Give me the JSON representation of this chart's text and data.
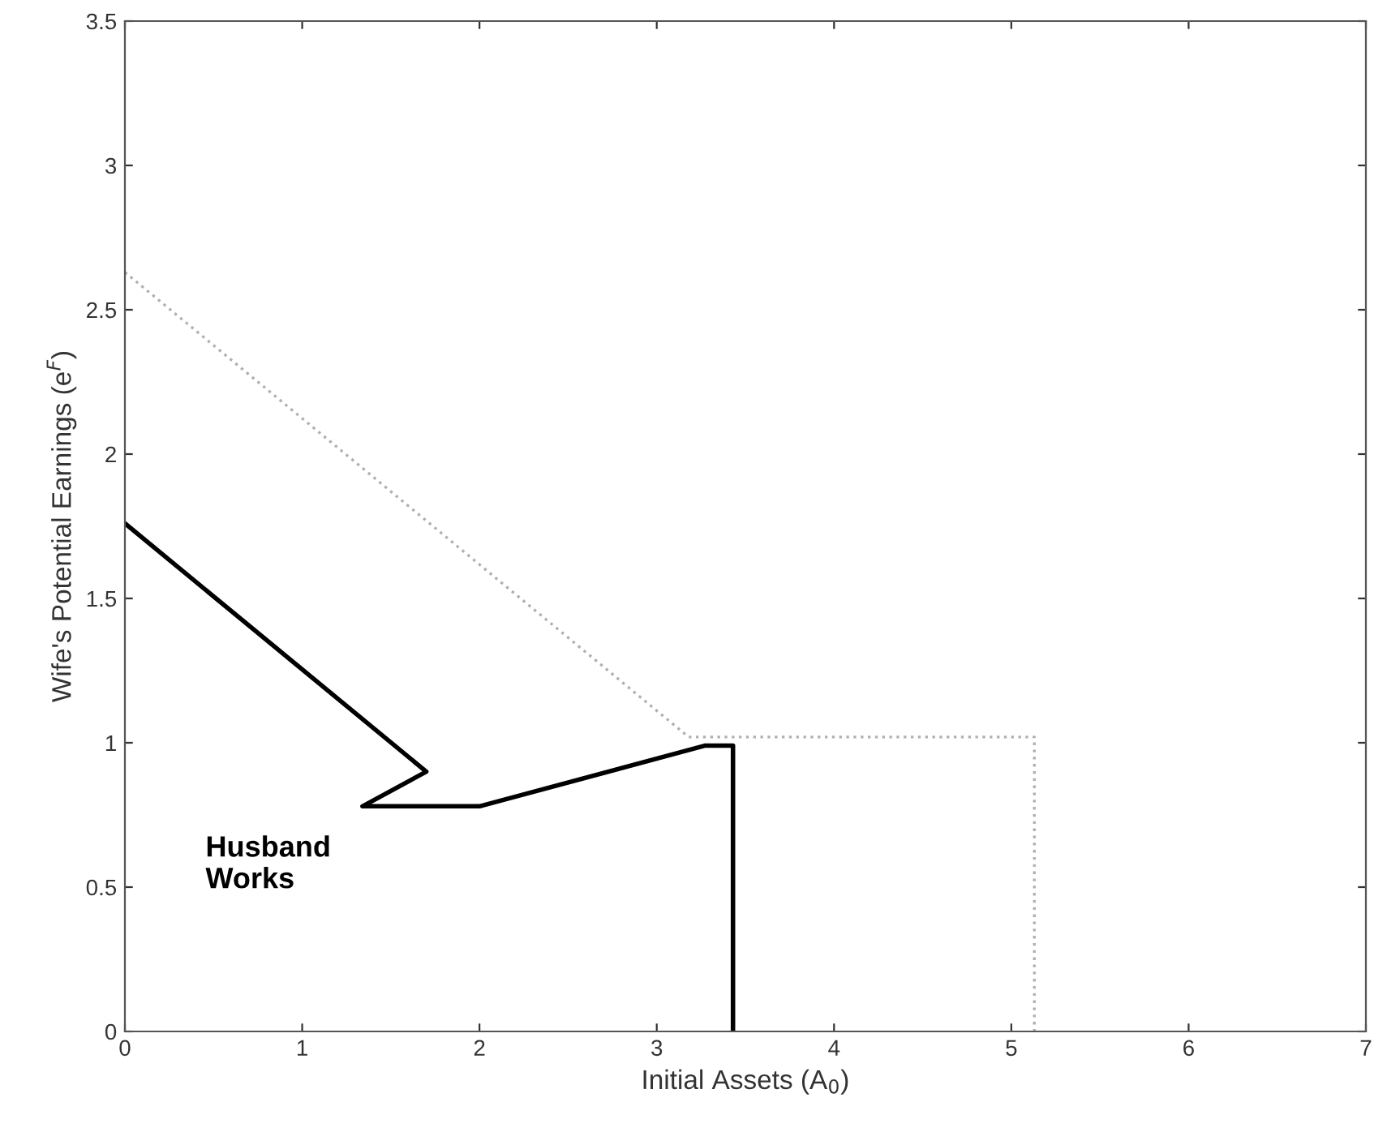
{
  "chart_data": {
    "type": "line",
    "xlabel": "Initial Assets (A$_{0}$)",
    "ylabel": "Wife's Potential Earnings (e$^{F}$)",
    "xlim": [
      0,
      7
    ],
    "ylim": [
      0,
      3.5
    ],
    "xticks": [
      0,
      1,
      2,
      3,
      4,
      5,
      6,
      7
    ],
    "yticks": [
      0,
      0.5,
      1,
      1.5,
      2,
      2.5,
      3,
      3.5
    ],
    "grid": false,
    "legend": false,
    "marker": "none",
    "series": [
      {
        "color": "#000000",
        "line_style": "solid",
        "x": [
          0,
          1.7,
          1.34,
          2.0,
          3.27,
          3.43,
          3.43
        ],
        "values": [
          1.76,
          0.9,
          0.78,
          0.78,
          0.99,
          0.99,
          0
        ]
      },
      {
        "color": "#b0b0b0",
        "line_style": "dotted",
        "x": [
          0,
          3.18,
          5.13,
          5.13
        ],
        "values": [
          2.63,
          1.02,
          1.02,
          0
        ]
      }
    ],
    "annotations": [
      "Husband\nWorks"
    ]
  }
}
